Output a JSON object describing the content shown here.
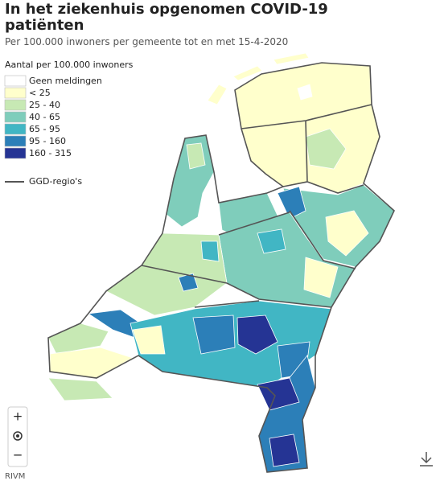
{
  "header": {
    "title": "In het ziekenhuis opgenomen COVID-19 patiënten",
    "subtitle": "Per 100.000 inwoners per gemeente tot en met 15-4-2020"
  },
  "legend": {
    "title": "Aantal per 100.000 inwoners",
    "items": [
      {
        "label": "Geen meldingen",
        "color": "#ffffff"
      },
      {
        "label": "< 25",
        "color": "#ffffcc"
      },
      {
        "label": "25 - 40",
        "color": "#c7e9b4"
      },
      {
        "label": "40 - 65",
        "color": "#7fcdbb"
      },
      {
        "label": "65 - 95",
        "color": "#41b6c4"
      },
      {
        "label": "95 - 160",
        "color": "#2c7fb8"
      },
      {
        "label": "160 - 315",
        "color": "#253494"
      }
    ],
    "regions_label": "GGD-regio's"
  },
  "controls": {
    "zoom_in": "+",
    "zoom_out": "−"
  },
  "source": "RIVM"
}
